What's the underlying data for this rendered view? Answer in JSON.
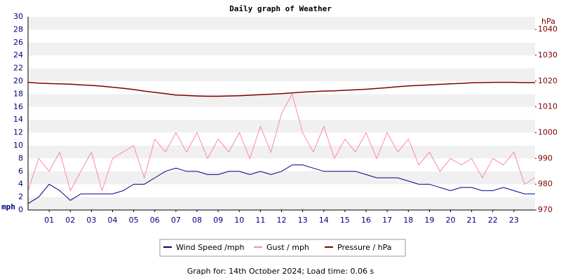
{
  "chart_data": {
    "type": "line",
    "title": "Daily graph of Weather",
    "ylabel": "mph",
    "y2label": "hPa",
    "footer": "Graph for: 14th October 2024; Load time: 0.06 s",
    "grid": "bands",
    "xlim": [
      0,
      24
    ],
    "xticks": [
      {
        "value": 1,
        "label": "01"
      },
      {
        "value": 2,
        "label": "02"
      },
      {
        "value": 3,
        "label": "03"
      },
      {
        "value": 4,
        "label": "04"
      },
      {
        "value": 5,
        "label": "05"
      },
      {
        "value": 6,
        "label": "06"
      },
      {
        "value": 7,
        "label": "07"
      },
      {
        "value": 8,
        "label": "08"
      },
      {
        "value": 9,
        "label": "09"
      },
      {
        "value": 10,
        "label": "10"
      },
      {
        "value": 11,
        "label": "11"
      },
      {
        "value": 12,
        "label": "12"
      },
      {
        "value": 13,
        "label": "13"
      },
      {
        "value": 14,
        "label": "14"
      },
      {
        "value": 15,
        "label": "15"
      },
      {
        "value": 16,
        "label": "16"
      },
      {
        "value": 17,
        "label": "17"
      },
      {
        "value": 18,
        "label": "18"
      },
      {
        "value": 19,
        "label": "19"
      },
      {
        "value": 20,
        "label": "20"
      },
      {
        "value": 21,
        "label": "21"
      },
      {
        "value": 22,
        "label": "22"
      },
      {
        "value": 23,
        "label": "23"
      }
    ],
    "ylim": [
      0,
      30
    ],
    "yticks": [
      0,
      2,
      4,
      6,
      8,
      10,
      12,
      14,
      16,
      18,
      20,
      22,
      24,
      26,
      28,
      30
    ],
    "y2lim": [
      970,
      1044.9
    ],
    "y2ticks": [
      970,
      980,
      990,
      1000,
      1010,
      1020,
      1030,
      1040
    ],
    "x": [
      0,
      0.5,
      1,
      1.5,
      2,
      2.5,
      3,
      3.5,
      4,
      4.5,
      5,
      5.5,
      6,
      6.5,
      7,
      7.5,
      8,
      8.5,
      9,
      9.5,
      10,
      10.5,
      11,
      11.5,
      12,
      12.5,
      13,
      13.5,
      14,
      14.5,
      15,
      15.5,
      16,
      16.5,
      17,
      17.5,
      18,
      18.5,
      19,
      19.5,
      20,
      20.5,
      21,
      21.5,
      22,
      22.5,
      23,
      23.5,
      24
    ],
    "series": [
      {
        "name": "Gust / mph",
        "color": "#ff88aa",
        "values": [
          3,
          8,
          6,
          9,
          3,
          6,
          9,
          3,
          8,
          9,
          10,
          5,
          11,
          9,
          12,
          9,
          12,
          8,
          11,
          9,
          12,
          8,
          13,
          9,
          15,
          18,
          12,
          9,
          13,
          8,
          11,
          9,
          12,
          8,
          12,
          9,
          11,
          7,
          9,
          6,
          8,
          7,
          8,
          5,
          8,
          7,
          9,
          4,
          5
        ]
      },
      {
        "name": "Wind Speed /mph",
        "color": "#000080",
        "values": [
          1,
          2,
          4,
          3,
          1.5,
          2.5,
          2.5,
          2.5,
          2.5,
          3,
          4,
          4,
          5,
          6,
          6.5,
          6,
          6,
          5.5,
          5.5,
          6,
          6,
          5.5,
          6,
          5.5,
          6,
          7,
          7,
          6.5,
          6,
          6,
          6,
          6,
          5.5,
          5,
          5,
          5,
          4.5,
          4,
          4,
          3.5,
          3,
          3.5,
          3.5,
          3,
          3,
          3.5,
          3,
          2.5,
          2.5
        ]
      },
      {
        "name": "Pressure / hPa",
        "color": "#800000",
        "axis": "y2",
        "values": [
          1019.5,
          1019.2,
          1019,
          1018.9,
          1018.8,
          1018.5,
          1018.3,
          1018,
          1017.6,
          1017.2,
          1016.7,
          1016.1,
          1015.6,
          1015.1,
          1014.6,
          1014.4,
          1014.2,
          1014.1,
          1014.1,
          1014.2,
          1014.3,
          1014.5,
          1014.7,
          1014.9,
          1015.1,
          1015.4,
          1015.7,
          1015.9,
          1016.1,
          1016.2,
          1016.4,
          1016.6,
          1016.8,
          1017.1,
          1017.4,
          1017.8,
          1018.1,
          1018.3,
          1018.5,
          1018.7,
          1018.9,
          1019.1,
          1019.3,
          1019.4,
          1019.5,
          1019.5,
          1019.5,
          1019.4,
          1019.4
        ]
      }
    ],
    "legend_order": [
      1,
      0,
      2
    ]
  }
}
